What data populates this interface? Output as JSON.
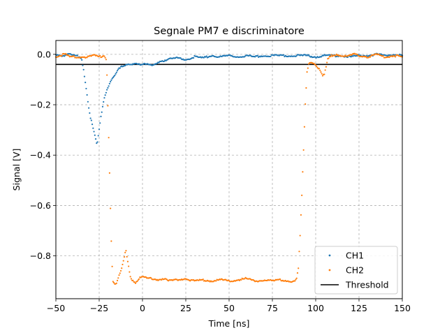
{
  "chart_data": {
    "type": "scatter",
    "title": "Segnale PM7 e discriminatore",
    "xlabel": "Time [ns]",
    "ylabel": "Signal [V]",
    "xlim": [
      -50,
      150
    ],
    "ylim": [
      -0.97,
      0.055
    ],
    "xticks": [
      -50,
      -25,
      0,
      25,
      50,
      75,
      100,
      125,
      150
    ],
    "yticks": [
      0.0,
      -0.2,
      -0.4,
      -0.6,
      -0.8
    ],
    "xtick_labels": [
      "−50",
      "−25",
      "0",
      "25",
      "50",
      "75",
      "100",
      "125",
      "150"
    ],
    "ytick_labels": [
      "0.0",
      "−0.2",
      "−0.4",
      "−0.6",
      "−0.8"
    ],
    "grid": true,
    "legend_position": "lower-right",
    "threshold": {
      "name": "Threshold",
      "value": -0.04,
      "color": "#000000"
    },
    "series": [
      {
        "name": "CH1",
        "color": "#1f77b4",
        "points": [
          [
            -50,
            0.0
          ],
          [
            -46,
            -0.005
          ],
          [
            -42,
            0.0
          ],
          [
            -39,
            -0.005
          ],
          [
            -36,
            -0.01
          ],
          [
            -35,
            -0.02
          ],
          [
            -34,
            -0.06
          ],
          [
            -33,
            -0.11
          ],
          [
            -32,
            -0.16
          ],
          [
            -31,
            -0.21
          ],
          [
            -30,
            -0.25
          ],
          [
            -29,
            -0.28
          ],
          [
            -28,
            -0.31
          ],
          [
            -27,
            -0.34
          ],
          [
            -26.5,
            -0.355
          ],
          [
            -26,
            -0.35
          ],
          [
            -25,
            -0.3
          ],
          [
            -24,
            -0.25
          ],
          [
            -23,
            -0.21
          ],
          [
            -22,
            -0.17
          ],
          [
            -21,
            -0.15
          ],
          [
            -20,
            -0.13
          ],
          [
            -19,
            -0.115
          ],
          [
            -18,
            -0.1
          ],
          [
            -17,
            -0.09
          ],
          [
            -16,
            -0.08
          ],
          [
            -15,
            -0.07
          ],
          [
            -14,
            -0.06
          ],
          [
            -12,
            -0.05
          ],
          [
            -10,
            -0.045
          ],
          [
            -7,
            -0.04
          ],
          [
            -4,
            -0.035
          ],
          [
            0,
            -0.04
          ],
          [
            3,
            -0.04
          ],
          [
            6,
            -0.045
          ],
          [
            9,
            -0.03
          ],
          [
            12,
            -0.025
          ],
          [
            15,
            -0.02
          ],
          [
            20,
            -0.015
          ],
          [
            25,
            -0.02
          ],
          [
            30,
            -0.01
          ],
          [
            35,
            -0.015
          ],
          [
            40,
            -0.005
          ],
          [
            45,
            -0.01
          ],
          [
            50,
            -0.005
          ],
          [
            55,
            -0.01
          ],
          [
            60,
            -0.005
          ],
          [
            65,
            -0.01
          ],
          [
            70,
            -0.005
          ],
          [
            75,
            -0.005
          ],
          [
            80,
            -0.005
          ],
          [
            85,
            -0.005
          ],
          [
            90,
            -0.005
          ],
          [
            95,
            -0.005
          ],
          [
            100,
            -0.01
          ],
          [
            105,
            -0.005
          ],
          [
            110,
            -0.005
          ],
          [
            115,
            -0.005
          ],
          [
            120,
            -0.01
          ],
          [
            125,
            -0.005
          ],
          [
            130,
            -0.005
          ],
          [
            135,
            0.0
          ],
          [
            140,
            -0.005
          ],
          [
            145,
            0.0
          ],
          [
            150,
            -0.005
          ]
        ]
      },
      {
        "name": "CH2",
        "color": "#ff7f0e",
        "points": [
          [
            -50,
            -0.01
          ],
          [
            -48,
            -0.005
          ],
          [
            -45,
            0.0
          ],
          [
            -42,
            -0.01
          ],
          [
            -38,
            -0.01
          ],
          [
            -35,
            -0.01
          ],
          [
            -32,
            -0.01
          ],
          [
            -28,
            -0.005
          ],
          [
            -25,
            -0.01
          ],
          [
            -22,
            -0.005
          ],
          [
            -21,
            -0.02
          ],
          [
            -20.5,
            -0.08
          ],
          [
            -20,
            -0.2
          ],
          [
            -19.5,
            -0.33
          ],
          [
            -19,
            -0.47
          ],
          [
            -18.5,
            -0.61
          ],
          [
            -18,
            -0.74
          ],
          [
            -17.5,
            -0.84
          ],
          [
            -17,
            -0.9
          ],
          [
            -16,
            -0.915
          ],
          [
            -15,
            -0.91
          ],
          [
            -14,
            -0.89
          ],
          [
            -13,
            -0.87
          ],
          [
            -12,
            -0.85
          ],
          [
            -11,
            -0.82
          ],
          [
            -10,
            -0.79
          ],
          [
            -9.5,
            -0.78
          ],
          [
            -9,
            -0.8
          ],
          [
            -8,
            -0.84
          ],
          [
            -7,
            -0.88
          ],
          [
            -6,
            -0.895
          ],
          [
            -5,
            -0.9
          ],
          [
            -4,
            -0.905
          ],
          [
            -3,
            -0.9
          ],
          [
            -2,
            -0.89
          ],
          [
            0,
            -0.885
          ],
          [
            3,
            -0.89
          ],
          [
            6,
            -0.89
          ],
          [
            9,
            -0.895
          ],
          [
            12,
            -0.89
          ],
          [
            15,
            -0.9
          ],
          [
            20,
            -0.895
          ],
          [
            25,
            -0.89
          ],
          [
            30,
            -0.9
          ],
          [
            35,
            -0.895
          ],
          [
            40,
            -0.9
          ],
          [
            45,
            -0.895
          ],
          [
            50,
            -0.9
          ],
          [
            55,
            -0.895
          ],
          [
            60,
            -0.89
          ],
          [
            65,
            -0.9
          ],
          [
            70,
            -0.895
          ],
          [
            75,
            -0.9
          ],
          [
            80,
            -0.895
          ],
          [
            85,
            -0.9
          ],
          [
            88,
            -0.9
          ],
          [
            89,
            -0.89
          ],
          [
            90,
            -0.85
          ],
          [
            91,
            -0.72
          ],
          [
            92,
            -0.56
          ],
          [
            93,
            -0.38
          ],
          [
            94,
            -0.2
          ],
          [
            95,
            -0.07
          ],
          [
            96,
            -0.035
          ],
          [
            98,
            -0.03
          ],
          [
            100,
            -0.04
          ],
          [
            102,
            -0.06
          ],
          [
            104,
            -0.085
          ],
          [
            105,
            -0.08
          ],
          [
            106,
            -0.05
          ],
          [
            107,
            -0.02
          ],
          [
            109,
            -0.005
          ],
          [
            112,
            0.0
          ],
          [
            115,
            -0.005
          ],
          [
            118,
            -0.01
          ],
          [
            122,
            0.0
          ],
          [
            125,
            -0.005
          ],
          [
            130,
            -0.01
          ],
          [
            135,
            0.0
          ],
          [
            140,
            -0.01
          ],
          [
            145,
            -0.005
          ],
          [
            150,
            -0.01
          ]
        ]
      }
    ]
  }
}
